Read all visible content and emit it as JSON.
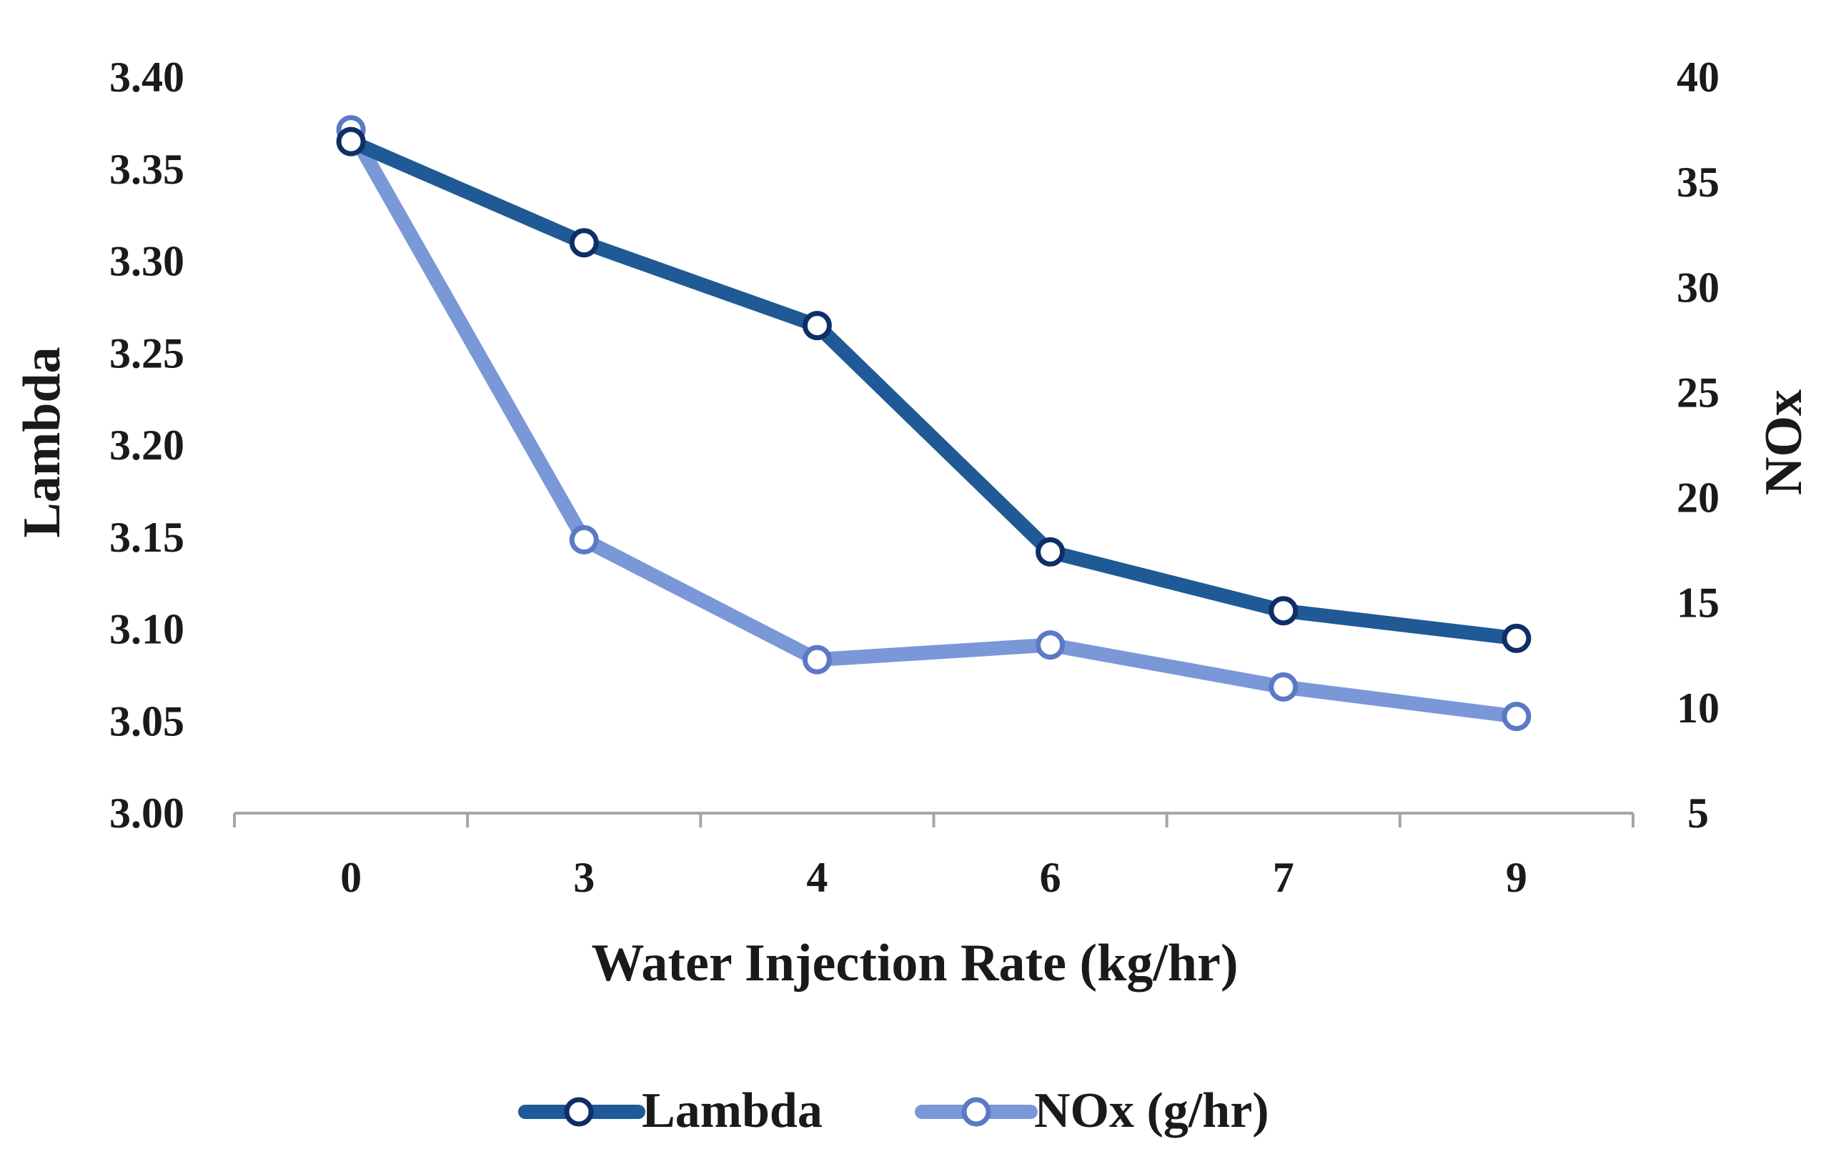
{
  "chart_data": {
    "type": "line",
    "title": "",
    "xlabel": "Water Injection Rate (kg/hr)",
    "ylabel": "Lambda",
    "y2label": "NOx",
    "categories": [
      "0",
      "3",
      "4",
      "6",
      "7",
      "9"
    ],
    "y_ticks": [
      "3.00",
      "3.05",
      "3.10",
      "3.15",
      "3.20",
      "3.25",
      "3.30",
      "3.35",
      "3.40"
    ],
    "y2_ticks": [
      "5",
      "10",
      "15",
      "20",
      "25",
      "30",
      "35",
      "40"
    ],
    "ylim": [
      3.0,
      3.4
    ],
    "y2lim": [
      5,
      40
    ],
    "grid": false,
    "legend_position": "bottom",
    "series": [
      {
        "name": "Lambda",
        "axis": "left",
        "color": "#1f5a96",
        "marker_edge": "#0e2f66",
        "values": [
          3.365,
          3.31,
          3.265,
          3.142,
          3.11,
          3.095
        ]
      },
      {
        "name": "NOx (g/hr)",
        "axis": "right",
        "color": "#7a97d8",
        "marker_edge": "#5b79c4",
        "values": [
          37.5,
          18.0,
          12.3,
          13.0,
          11.0,
          9.6
        ]
      }
    ]
  }
}
